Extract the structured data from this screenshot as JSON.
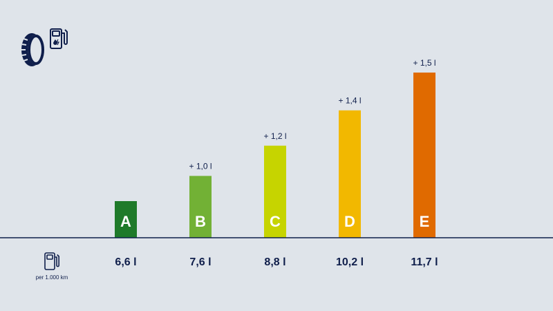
{
  "colors": {
    "background": "#dfe4ea",
    "text": "#0f1e4b",
    "baseline": "#0f1e4b",
    "bars": [
      "#1f7a2a",
      "#72b135",
      "#c6d400",
      "#f2b800",
      "#e06a00"
    ]
  },
  "icons": {
    "tire": "tire-icon",
    "fuel_charge": "fuel-charge-icon",
    "fuel_pump": "fuel-pump-icon"
  },
  "footer": {
    "unit_note": "per 1.000 km"
  },
  "chart_data": {
    "type": "bar",
    "categories": [
      "A",
      "B",
      "C",
      "D",
      "E"
    ],
    "values": [
      6.6,
      7.6,
      8.8,
      10.2,
      11.7
    ],
    "value_labels": [
      "6,6 l",
      "7,6 l",
      "8,8 l",
      "10,2 l",
      "11,7 l"
    ],
    "increment_labels": [
      "",
      "+ 1,0 l",
      "+ 1,2 l",
      "+ 1,4 l",
      "+ 1,5 l"
    ],
    "title": "",
    "xlabel": "",
    "ylabel": "",
    "grid": false,
    "legend": "none"
  }
}
